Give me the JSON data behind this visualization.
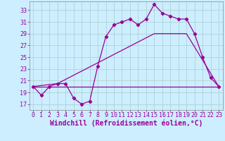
{
  "background_color": "#cceeff",
  "line_color": "#990099",
  "grid_color": "#aacccc",
  "xlim": [
    -0.5,
    23.5
  ],
  "ylim": [
    16.0,
    34.5
  ],
  "xticks": [
    0,
    1,
    2,
    3,
    4,
    5,
    6,
    7,
    8,
    9,
    10,
    11,
    12,
    13,
    14,
    15,
    16,
    17,
    18,
    19,
    20,
    21,
    22,
    23
  ],
  "yticks": [
    17,
    19,
    21,
    23,
    25,
    27,
    29,
    31,
    33
  ],
  "line1_x": [
    0,
    1,
    2,
    3,
    4,
    5,
    6,
    7,
    8,
    9,
    10,
    11,
    12,
    13,
    14,
    15,
    16,
    17,
    18,
    19,
    20,
    21,
    22,
    23
  ],
  "line1_y": [
    20.0,
    18.5,
    20.0,
    20.5,
    20.5,
    18.0,
    17.0,
    17.5,
    23.5,
    28.5,
    30.5,
    31.0,
    31.5,
    30.5,
    31.5,
    34.0,
    32.5,
    32.0,
    31.5,
    31.5,
    29.0,
    25.0,
    21.5,
    20.0
  ],
  "line2_x": [
    0,
    3,
    15,
    19,
    23
  ],
  "line2_y": [
    20.0,
    20.5,
    29.0,
    29.0,
    20.0
  ],
  "line3_x": [
    0,
    3,
    7,
    19,
    23
  ],
  "line3_y": [
    20.0,
    20.0,
    20.0,
    20.0,
    20.0
  ],
  "xlabel": "Windchill (Refroidissement éolien,°C)",
  "xlabel_fontsize": 7,
  "tick_fontsize": 6
}
